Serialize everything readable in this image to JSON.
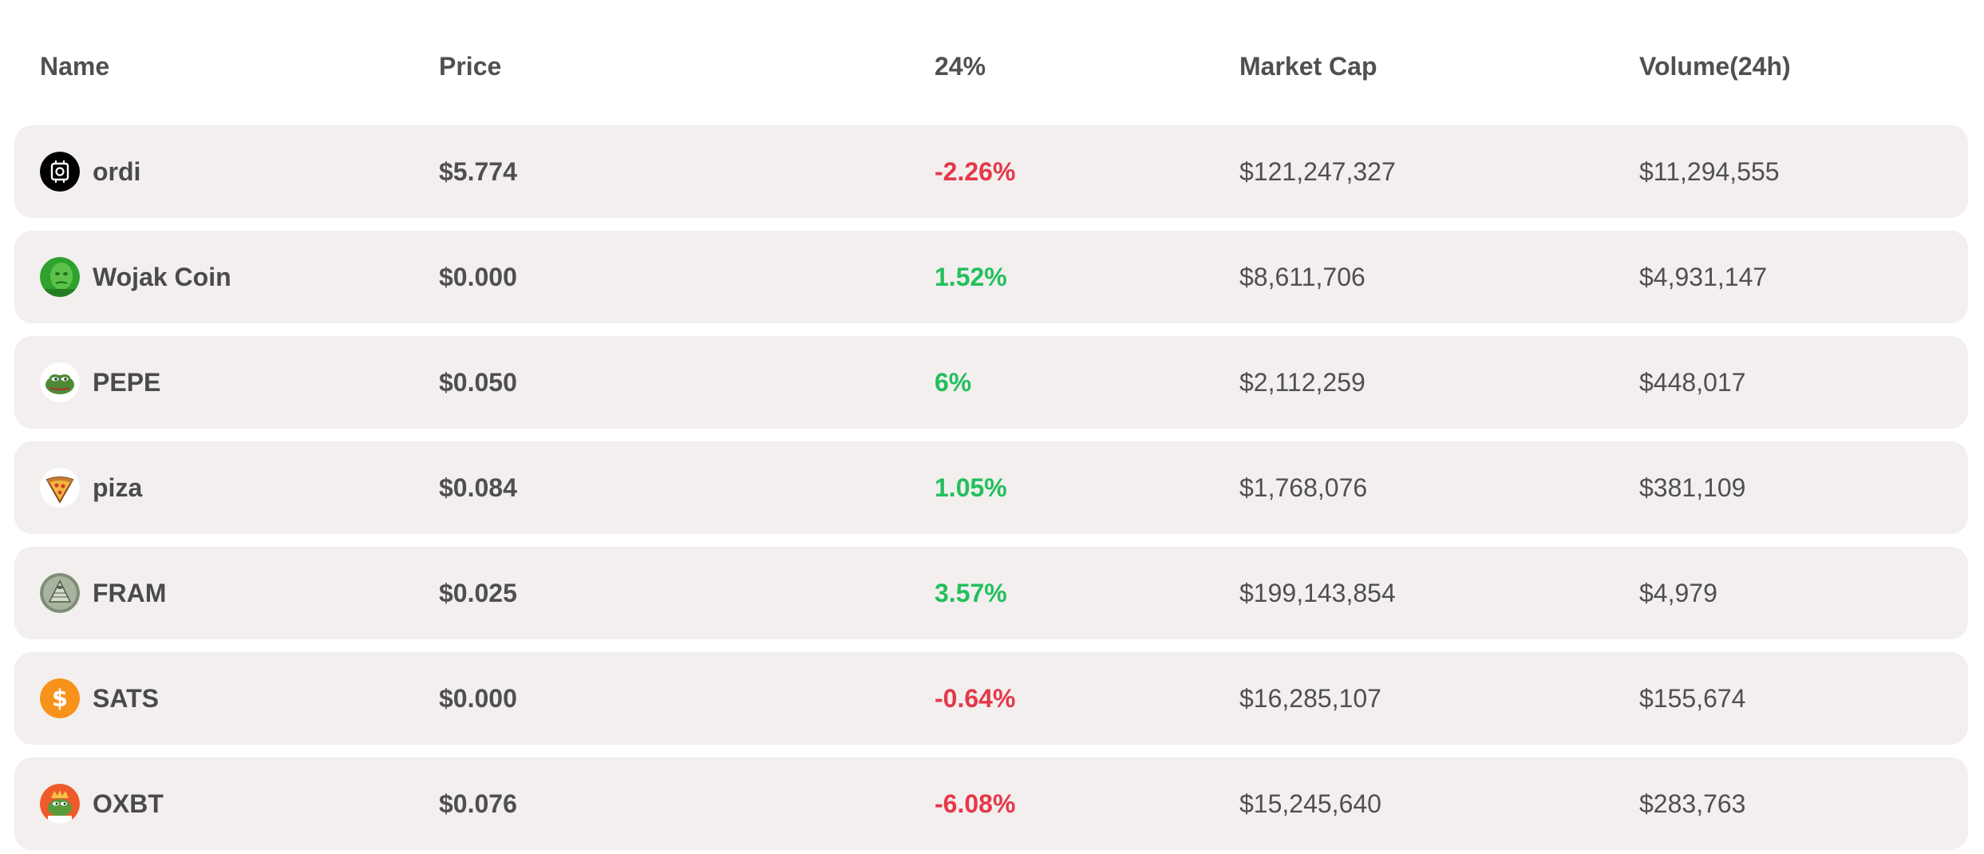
{
  "header": {
    "name": "Name",
    "price": "Price",
    "change": "24%",
    "market_cap": "Market Cap",
    "volume": "Volume(24h)"
  },
  "colors": {
    "row_bg": "#f2efee",
    "positive": "#22c05c",
    "negative": "#e5384a",
    "text": "#4f4f4f"
  },
  "rows": [
    {
      "icon": "ordi-logo-icon",
      "name": "ordi",
      "price": "$5.774",
      "change": "-2.26%",
      "direction": "down",
      "market_cap": "$121,247,327",
      "volume": "$11,294,555"
    },
    {
      "icon": "wojak-logo-icon",
      "name": "Wojak Coin",
      "price": "$0.000",
      "change": "1.52%",
      "direction": "up",
      "market_cap": "$8,611,706",
      "volume": "$4,931,147"
    },
    {
      "icon": "pepe-logo-icon",
      "name": "PEPE",
      "price": "$0.050",
      "change": "6%",
      "direction": "up",
      "market_cap": "$2,112,259",
      "volume": "$448,017"
    },
    {
      "icon": "pizza-logo-icon",
      "name": "piza",
      "price": "$0.084",
      "change": "1.05%",
      "direction": "up",
      "market_cap": "$1,768,076",
      "volume": "$381,109"
    },
    {
      "icon": "fram-logo-icon",
      "name": "FRAM",
      "price": "$0.025",
      "change": "3.57%",
      "direction": "up",
      "market_cap": "$199,143,854",
      "volume": "$4,979"
    },
    {
      "icon": "sats-dollar-logo-icon",
      "name": "SATS",
      "price": "$0.000",
      "change": "-0.64%",
      "direction": "down",
      "market_cap": "$16,285,107",
      "volume": "$155,674"
    },
    {
      "icon": "oxbt-logo-icon",
      "name": "OXBT",
      "price": "$0.076",
      "change": "-6.08%",
      "direction": "down",
      "market_cap": "$15,245,640",
      "volume": "$283,763"
    }
  ]
}
